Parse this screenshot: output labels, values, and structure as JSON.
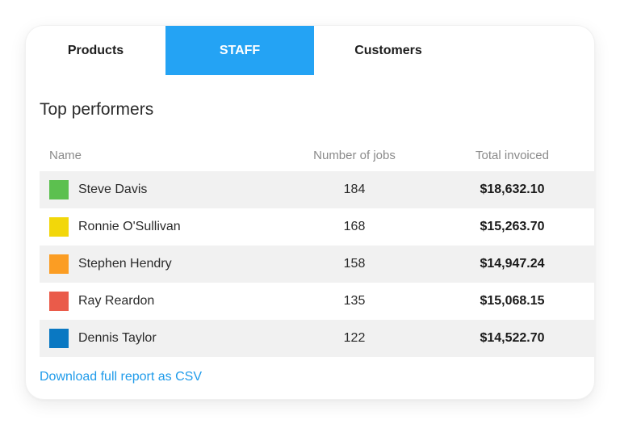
{
  "tabs": [
    {
      "label": "Products",
      "active": false
    },
    {
      "label": "STAFF",
      "active": true
    },
    {
      "label": "Customers",
      "active": false
    }
  ],
  "section": {
    "title": "Top performers"
  },
  "table": {
    "headers": {
      "name": "Name",
      "jobs": "Number of jobs",
      "total": "Total invoiced"
    },
    "rows": [
      {
        "name": "Steve Davis",
        "jobs": "184",
        "total": "$18,632.10",
        "color": "#5cc04f"
      },
      {
        "name": "Ronnie O'Sullivan",
        "jobs": "168",
        "total": "$15,263.70",
        "color": "#f2d70a"
      },
      {
        "name": "Stephen Hendry",
        "jobs": "158",
        "total": "$14,947.24",
        "color": "#fb9d23"
      },
      {
        "name": "Ray Reardon",
        "jobs": "135",
        "total": "$15,068.15",
        "color": "#ea5b4a"
      },
      {
        "name": "Dennis Taylor",
        "jobs": "122",
        "total": "$14,522.70",
        "color": "#0a78c2"
      }
    ]
  },
  "footer": {
    "csv_link": "Download full report as CSV"
  },
  "colors": {
    "accent": "#24a3f4",
    "link": "#1f9bea",
    "row_shade": "#f1f1f1"
  }
}
